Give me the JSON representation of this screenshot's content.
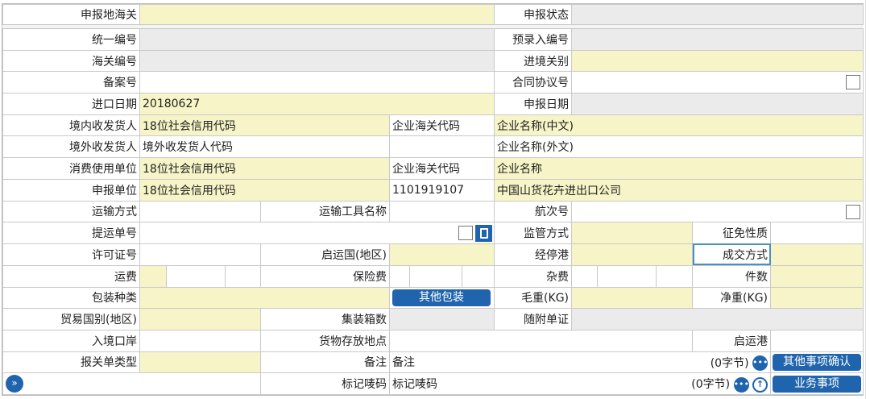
{
  "colors": {
    "required": "#f7f5c8",
    "readonly": "#ebebeb",
    "button": "#1f64ad"
  },
  "r1": {
    "l1": "申报地海关",
    "v1": "",
    "l2": "申报状态",
    "v2": ""
  },
  "r2": {
    "l1": "统一编号",
    "l2": "预录入编号"
  },
  "r3": {
    "l1": "海关编号",
    "l2": "进境关别"
  },
  "r4": {
    "l1": "备案号",
    "l2": "合同协议号"
  },
  "r5": {
    "l1": "进口日期",
    "v1": "20180627",
    "l2": "申报日期"
  },
  "r6": {
    "l1": "境内收发货人",
    "v1": "18位社会信用代码",
    "v2": "企业海关代码",
    "v3": "企业名称(中文)"
  },
  "r7": {
    "l1": "境外收发货人",
    "v1": "境外收发货人代码",
    "v3": "企业名称(外文)"
  },
  "r8": {
    "l1": "消费使用单位",
    "v1": "18位社会信用代码",
    "v2": "企业海关代码",
    "v3": "企业名称"
  },
  "r9": {
    "l1": "申报单位",
    "v1": "18位社会信用代码",
    "v2": "1101919107",
    "v3": "中国山货花卉进出口公司"
  },
  "r10": {
    "l1": "运输方式",
    "l2": "运输工具名称",
    "l3": "航次号"
  },
  "r11": {
    "l1": "提运单号",
    "l2": "监管方式",
    "l3": "征免性质"
  },
  "r12": {
    "l1": "许可证号",
    "l2": "启运国(地区)",
    "l3": "经停港",
    "l4": "成交方式"
  },
  "r13": {
    "l1": "运费",
    "l2": "保险费",
    "l3": "杂费",
    "l4": "件数"
  },
  "r14": {
    "l1": "包装种类",
    "button": "其他包装",
    "l2": "毛重(KG)",
    "l3": "净重(KG)"
  },
  "r15": {
    "l1": "贸易国别(地区)",
    "l2": "集装箱数",
    "l3": "随附单证"
  },
  "r16": {
    "l1": "入境口岸",
    "l2": "货物存放地点",
    "l3": "启运港"
  },
  "r17": {
    "l1": "报关单类型",
    "l2": "备注",
    "v2": "备注",
    "bytes": "(0字节)",
    "button": "其他事项确认"
  },
  "r18": {
    "l2": "标记唛码",
    "v2": "标记唛码",
    "bytes": "(0字节)",
    "button": "业务事项"
  }
}
